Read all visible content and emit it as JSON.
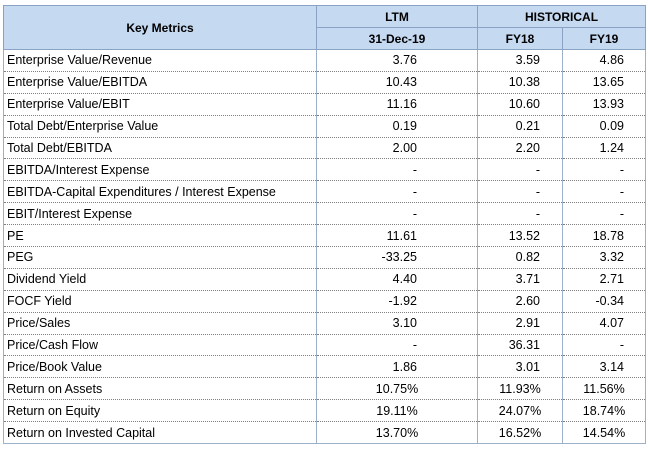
{
  "header": {
    "metrics_label": "Key Metrics",
    "ltm_label": "LTM",
    "historical_label": "HISTORICAL",
    "ltm_date": "31-Dec-19",
    "fy18_label": "FY18",
    "fy19_label": "FY19"
  },
  "rows": [
    {
      "metric": "Enterprise Value/Revenue",
      "ltm": "3.76",
      "fy18": "3.59",
      "fy19": "4.86"
    },
    {
      "metric": "Enterprise Value/EBITDA",
      "ltm": "10.43",
      "fy18": "10.38",
      "fy19": "13.65"
    },
    {
      "metric": "Enterprise Value/EBIT",
      "ltm": "11.16",
      "fy18": "10.60",
      "fy19": "13.93"
    },
    {
      "metric": "Total Debt/Enterprise Value",
      "ltm": "0.19",
      "fy18": "0.21",
      "fy19": "0.09"
    },
    {
      "metric": "Total Debt/EBITDA",
      "ltm": "2.00",
      "fy18": "2.20",
      "fy19": "1.24"
    },
    {
      "metric": "EBITDA/Interest Expense",
      "ltm": "-",
      "fy18": "-",
      "fy19": "-"
    },
    {
      "metric": "EBITDA-Capital Expenditures / Interest Expense",
      "ltm": "-",
      "fy18": "-",
      "fy19": "-"
    },
    {
      "metric": "EBIT/Interest Expense",
      "ltm": "-",
      "fy18": "-",
      "fy19": "-"
    },
    {
      "metric": "PE",
      "ltm": "11.61",
      "fy18": "13.52",
      "fy19": "18.78"
    },
    {
      "metric": "PEG",
      "ltm": "-33.25",
      "fy18": "0.82",
      "fy19": "3.32"
    },
    {
      "metric": "Dividend Yield",
      "ltm": "4.40",
      "fy18": "3.71",
      "fy19": "2.71"
    },
    {
      "metric": "FOCF Yield",
      "ltm": "-1.92",
      "fy18": "2.60",
      "fy19": "-0.34"
    },
    {
      "metric": "Price/Sales",
      "ltm": "3.10",
      "fy18": "2.91",
      "fy19": "4.07"
    },
    {
      "metric": "Price/Cash Flow",
      "ltm": "-",
      "fy18": "36.31",
      "fy19": "-"
    },
    {
      "metric": "Price/Book Value",
      "ltm": "1.86",
      "fy18": "3.01",
      "fy19": "3.14"
    },
    {
      "metric": "Return on Assets",
      "ltm": "10.75%",
      "fy18": "11.93%",
      "fy19": "11.56%"
    },
    {
      "metric": "Return on Equity",
      "ltm": "19.11%",
      "fy18": "24.07%",
      "fy19": "18.74%"
    },
    {
      "metric": "Return on Invested Capital",
      "ltm": "13.70%",
      "fy18": "16.52%",
      "fy19": "14.54%"
    }
  ]
}
